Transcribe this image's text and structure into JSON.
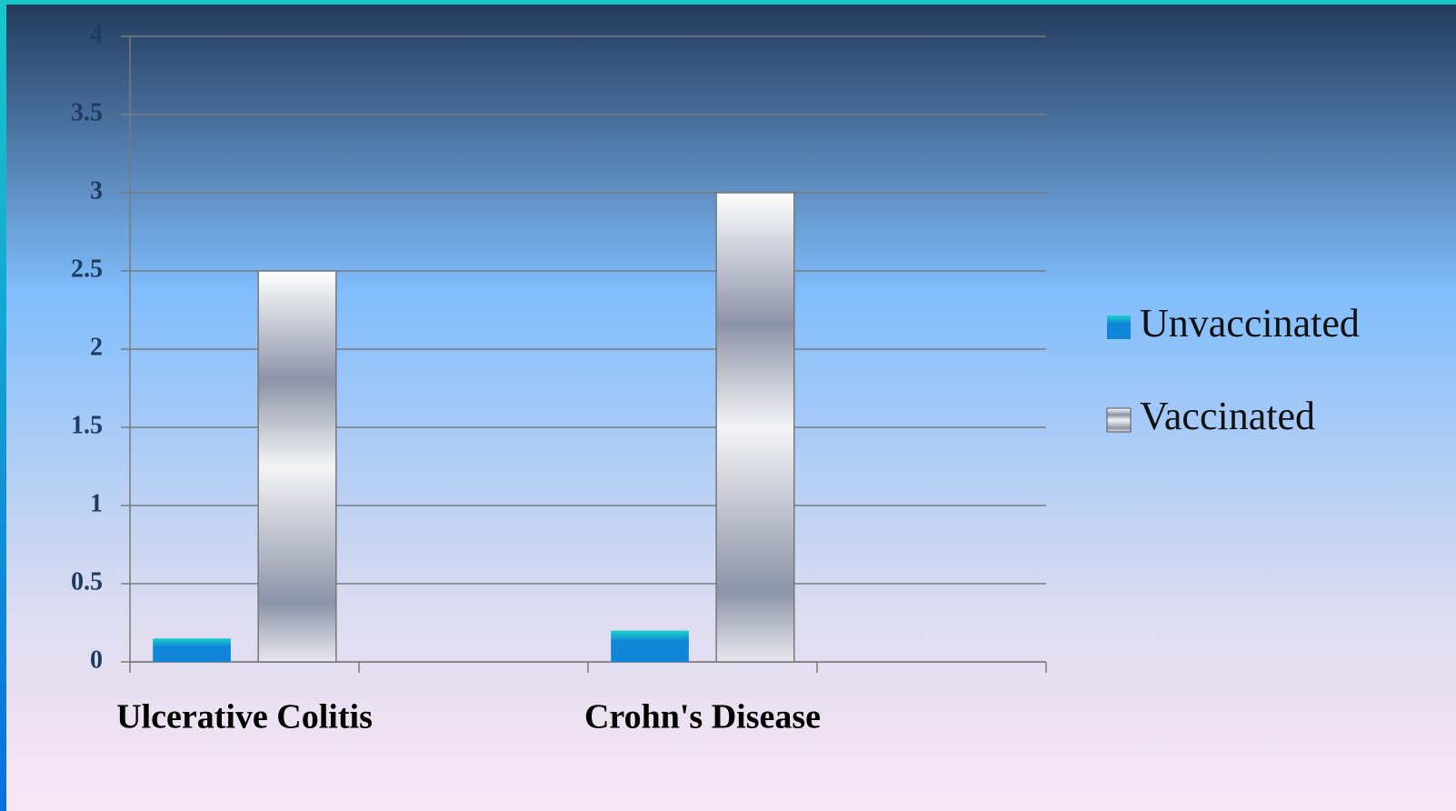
{
  "chart_data": {
    "type": "bar",
    "categories": [
      "Ulcerative Colitis",
      null,
      "Crohn's Disease",
      null
    ],
    "series": [
      {
        "name": "Unvaccinated",
        "color": "#0f86d8",
        "values": [
          0.15,
          null,
          0.2,
          null
        ]
      },
      {
        "name": "Vaccinated",
        "color": "#8d93a8",
        "values": [
          2.5,
          null,
          3,
          null
        ]
      }
    ],
    "ylim": [
      0,
      4
    ],
    "yticks": [
      0,
      0.5,
      1,
      1.5,
      2,
      2.5,
      3,
      3.5,
      4
    ],
    "grid": true,
    "legend": "right"
  }
}
